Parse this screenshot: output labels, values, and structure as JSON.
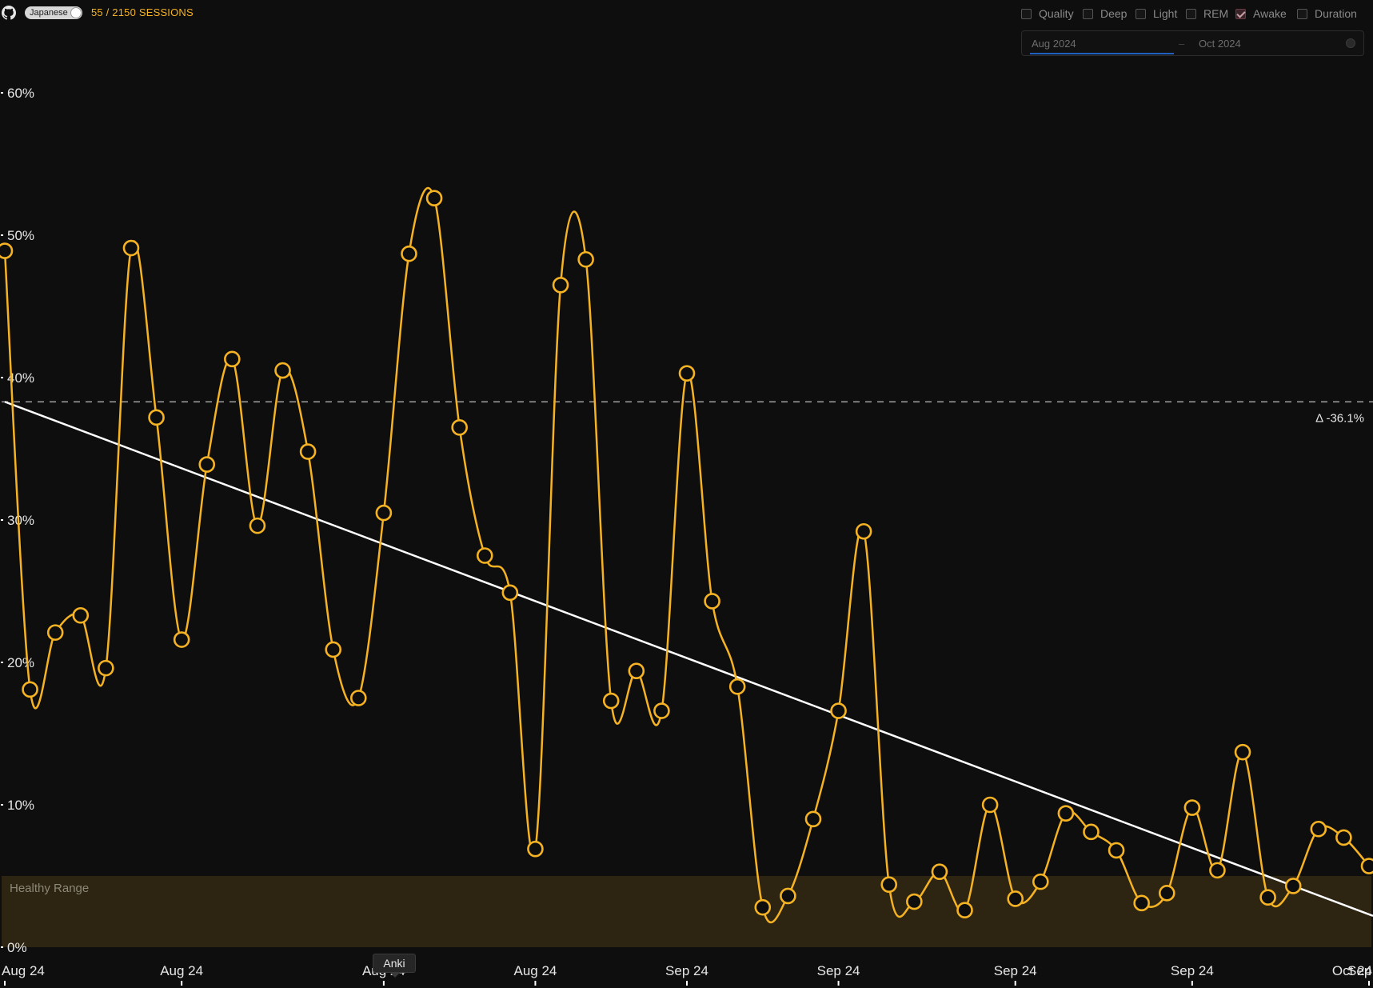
{
  "header": {
    "github_icon": "github-icon",
    "language_label": "Japanese",
    "language_toggle_on": true,
    "sessions_label": "55 / 2150 SESSIONS"
  },
  "metrics": [
    {
      "label": "Quality",
      "checked": false
    },
    {
      "label": "Deep",
      "checked": false
    },
    {
      "label": "Light",
      "checked": false
    },
    {
      "label": "REM",
      "checked": false
    },
    {
      "label": "Awake",
      "checked": true
    },
    {
      "label": "Duration",
      "checked": false
    }
  ],
  "date_range": {
    "start": "Aug 2024",
    "end": "Oct 2024",
    "clear_icon": "clear-icon"
  },
  "tooltip": {
    "label": "Anki"
  },
  "colors": {
    "line": "#f5b324",
    "trend": "#ffffff",
    "band": "#2d2411",
    "background": "#0e0e0e"
  },
  "chart_data": {
    "type": "line",
    "title": "",
    "xlabel": "",
    "ylabel": "",
    "ylim": [
      0,
      60
    ],
    "y_ticks": [
      "60%",
      "50%",
      "40%",
      "30%",
      "20%",
      "10%",
      "0%"
    ],
    "y_tick_values": [
      60,
      50,
      40,
      30,
      20,
      10,
      0
    ],
    "x_tick_labels": [
      "Aug 24",
      "Aug 24",
      "Aug 24",
      "Aug 24",
      "Sep 24",
      "Sep 24",
      "Sep 24",
      "Sep 24",
      "Sep 24",
      "Oct 24"
    ],
    "x_tick_sessions": [
      1,
      8,
      16,
      22,
      28,
      34,
      41,
      48,
      55,
      61
    ],
    "series": [
      {
        "values": [
          48.9,
          18.1,
          22.1,
          23.3,
          19.6,
          49.1,
          37.2,
          21.6,
          33.9,
          41.3,
          29.6,
          40.5,
          34.8,
          20.9,
          17.5,
          30.5,
          48.7,
          52.6,
          36.5,
          27.5,
          24.9,
          6.9,
          46.5,
          48.3,
          17.3,
          19.4,
          16.6,
          40.3,
          24.3,
          18.3,
          2.8,
          3.6,
          9.0,
          16.6,
          29.2,
          4.4,
          3.2,
          5.3,
          2.6,
          10.0,
          3.4,
          4.6,
          9.4,
          8.1,
          6.8,
          3.1,
          3.8,
          9.8,
          5.4,
          13.7,
          3.5,
          4.3,
          8.3,
          7.7,
          5.7
        ]
      }
    ],
    "trend": {
      "start": 38.3,
      "end": 2.2,
      "label": "Δ -36.1%"
    },
    "reference_line": 38.3,
    "band": {
      "label": "Healthy Range",
      "min": 0,
      "max": 5
    }
  }
}
